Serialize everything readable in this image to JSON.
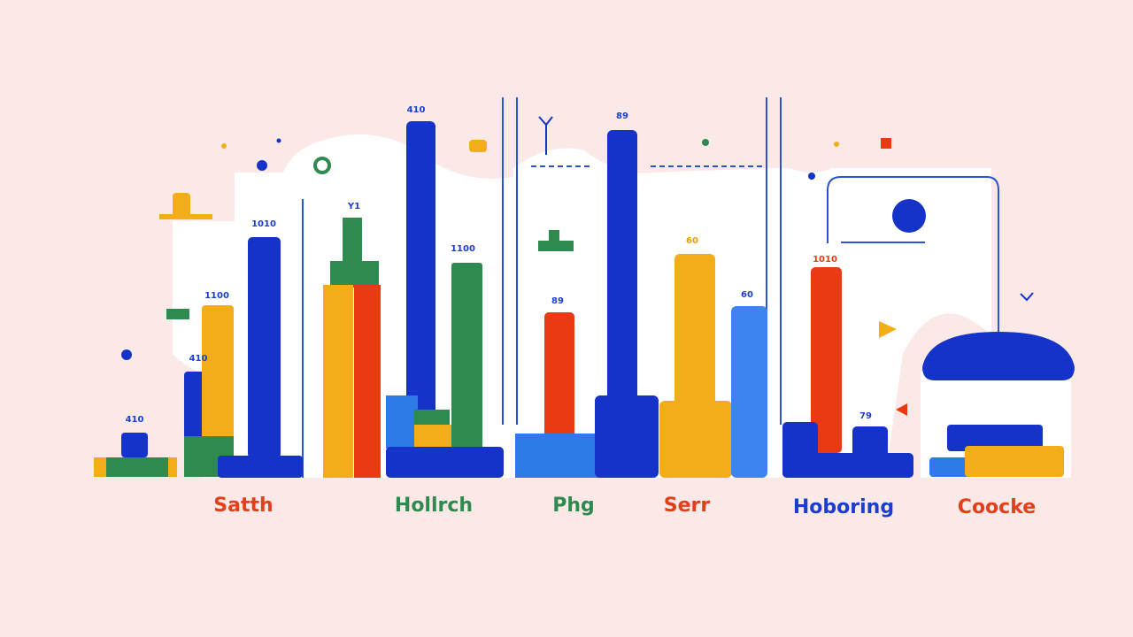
{
  "labels": [
    "Satth",
    "Hollrch",
    "Phg",
    "Serr",
    "Hoboring",
    "Coocke"
  ],
  "value_labels": [
    "410",
    "1010",
    "Y1",
    "1100",
    "1100",
    "410",
    "410",
    "89",
    "89",
    "60",
    "60",
    "1010",
    "79"
  ]
}
